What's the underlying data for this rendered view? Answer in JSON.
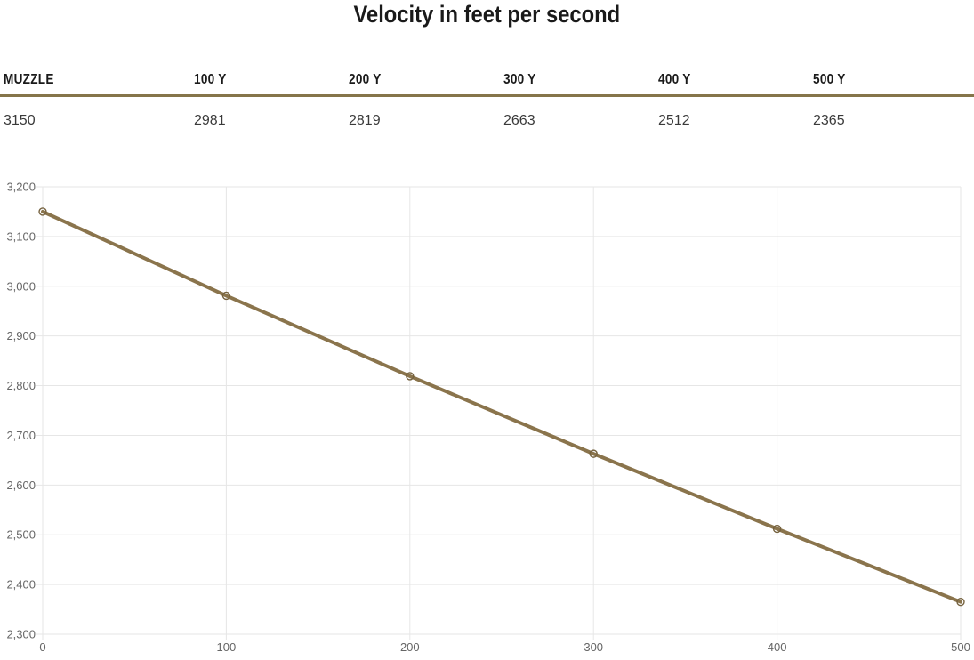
{
  "title": "Velocity in feet per second",
  "table": {
    "headers": [
      "MUZZLE",
      "100 Y",
      "200 Y",
      "300 Y",
      "400 Y",
      "500 Y"
    ],
    "values": [
      "3150",
      "2981",
      "2819",
      "2663",
      "2512",
      "2365"
    ]
  },
  "chart_data": {
    "type": "line",
    "title": "Velocity in feet per second",
    "x": [
      0,
      100,
      200,
      300,
      400,
      500
    ],
    "series": [
      {
        "name": "Velocity",
        "values": [
          3150,
          2981,
          2819,
          2663,
          2512,
          2365
        ]
      }
    ],
    "xlabel": "",
    "ylabel": "",
    "xlim": [
      0,
      500
    ],
    "ylim": [
      2300,
      3200
    ],
    "ytick_step": 100,
    "xticks": [
      0,
      100,
      200,
      300,
      400,
      500
    ],
    "grid": true,
    "legend_position": "none",
    "marker": "open-circle"
  },
  "colors": {
    "title_text": "#1a1a1a",
    "header_text": "#1a1a1a",
    "value_text": "#3a3a3a",
    "divider": "#85754a",
    "grid_line": "#e6e6e6",
    "axis_label": "#666666",
    "series_line": "#8a744c",
    "marker_stroke": "#75623f",
    "background": "#ffffff"
  }
}
